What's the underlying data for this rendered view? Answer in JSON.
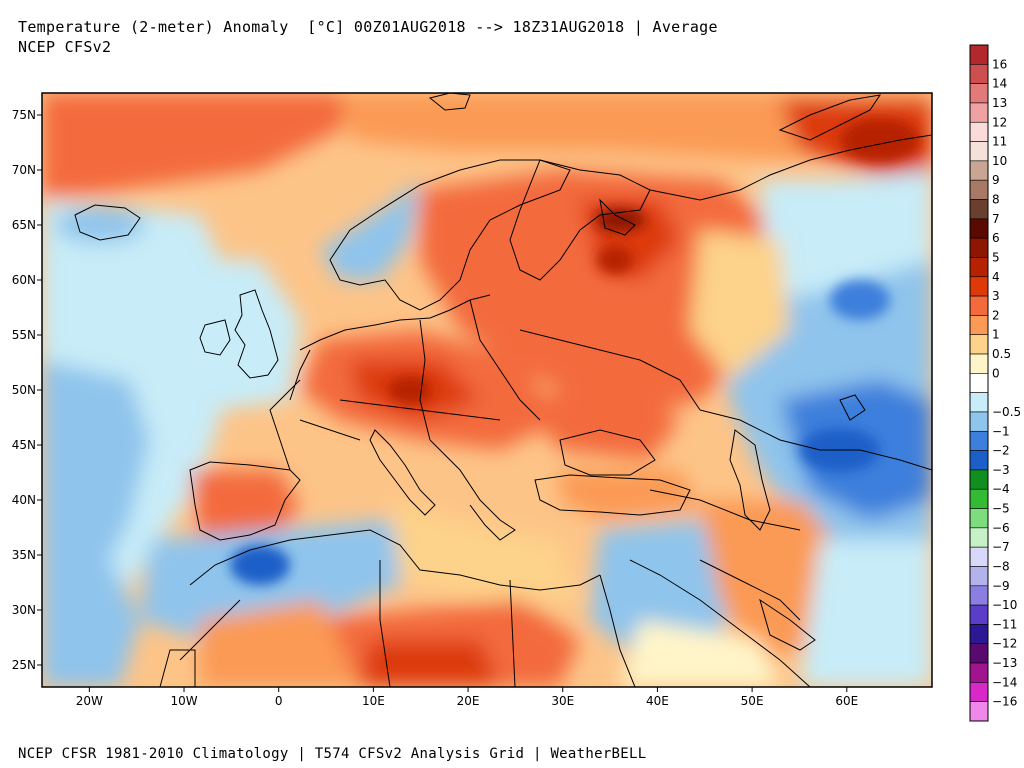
{
  "header": {
    "title": "Temperature (2-meter) Anomaly  [°C] 00Z01AUG2018 --> 18Z31AUG2018 | Average",
    "subtitle": "NCEP CFSv2"
  },
  "footer": {
    "text": "NCEP CFSR 1981-2010 Climatology | T574 CFSv2 Analysis Grid | WeatherBELL"
  },
  "map": {
    "region": "Europe",
    "projection": "cylindrical",
    "lon_range": [
      -25,
      69
    ],
    "lat_range": [
      23,
      77
    ],
    "lat_ticks": [
      {
        "value": 75,
        "label": "75N"
      },
      {
        "value": 70,
        "label": "70N"
      },
      {
        "value": 65,
        "label": "65N"
      },
      {
        "value": 60,
        "label": "60N"
      },
      {
        "value": 55,
        "label": "55N"
      },
      {
        "value": 50,
        "label": "50N"
      },
      {
        "value": 45,
        "label": "45N"
      },
      {
        "value": 40,
        "label": "40N"
      },
      {
        "value": 35,
        "label": "35N"
      },
      {
        "value": 30,
        "label": "30N"
      },
      {
        "value": 25,
        "label": "25N"
      }
    ],
    "lon_ticks": [
      {
        "value": -20,
        "label": "20W"
      },
      {
        "value": -10,
        "label": "10W"
      },
      {
        "value": 0,
        "label": "0"
      },
      {
        "value": 10,
        "label": "10E"
      },
      {
        "value": 20,
        "label": "20E"
      },
      {
        "value": 30,
        "label": "30E"
      },
      {
        "value": 40,
        "label": "40E"
      },
      {
        "value": 50,
        "label": "50E"
      },
      {
        "value": 60,
        "label": "60E"
      }
    ]
  },
  "colorbar": {
    "bins": [
      {
        "label": "16",
        "color": "#b2282d"
      },
      {
        "label": "14",
        "color": "#cd4f4f"
      },
      {
        "label": "13",
        "color": "#e27a7a"
      },
      {
        "label": "12",
        "color": "#f0a2a2"
      },
      {
        "label": "11",
        "color": "#fbdada"
      },
      {
        "label": "10",
        "color": "#f4e2da"
      },
      {
        "label": "9",
        "color": "#c9a593"
      },
      {
        "label": "8",
        "color": "#a87a66"
      },
      {
        "label": "7",
        "color": "#6b3f2f"
      },
      {
        "label": "6",
        "color": "#5a0a00"
      },
      {
        "label": "5",
        "color": "#8c1600"
      },
      {
        "label": "4",
        "color": "#b62200"
      },
      {
        "label": "3",
        "color": "#dd3a07"
      },
      {
        "label": "2",
        "color": "#f36a3c"
      },
      {
        "label": "1",
        "color": "#fb9a55"
      },
      {
        "label": "0.5",
        "color": "#fdd28a"
      },
      {
        "label": "0",
        "color": "#fff5c8"
      },
      {
        "label": "",
        "color": "#ffffff"
      },
      {
        "label": "−0.5",
        "color": "#c8ecf8"
      },
      {
        "label": "−1",
        "color": "#8fc4ec"
      },
      {
        "label": "−2",
        "color": "#3c7fdc"
      },
      {
        "label": "−3",
        "color": "#1c5fc8"
      },
      {
        "label": "−4",
        "color": "#108f20"
      },
      {
        "label": "−5",
        "color": "#34bb34"
      },
      {
        "label": "−6",
        "color": "#7ddc7d"
      },
      {
        "label": "−7",
        "color": "#c6f0c6"
      },
      {
        "label": "−8",
        "color": "#d8d8f8"
      },
      {
        "label": "−9",
        "color": "#b3b3ec"
      },
      {
        "label": "−10",
        "color": "#8a7ee0"
      },
      {
        "label": "−11",
        "color": "#5a3ec8"
      },
      {
        "label": "−12",
        "color": "#2c1894"
      },
      {
        "label": "−13",
        "color": "#5a0a6e"
      },
      {
        "label": "−14",
        "color": "#a01490"
      },
      {
        "label": "−16",
        "color": "#d828c8"
      },
      {
        "label": "",
        "color": "#f088ec"
      }
    ]
  }
}
